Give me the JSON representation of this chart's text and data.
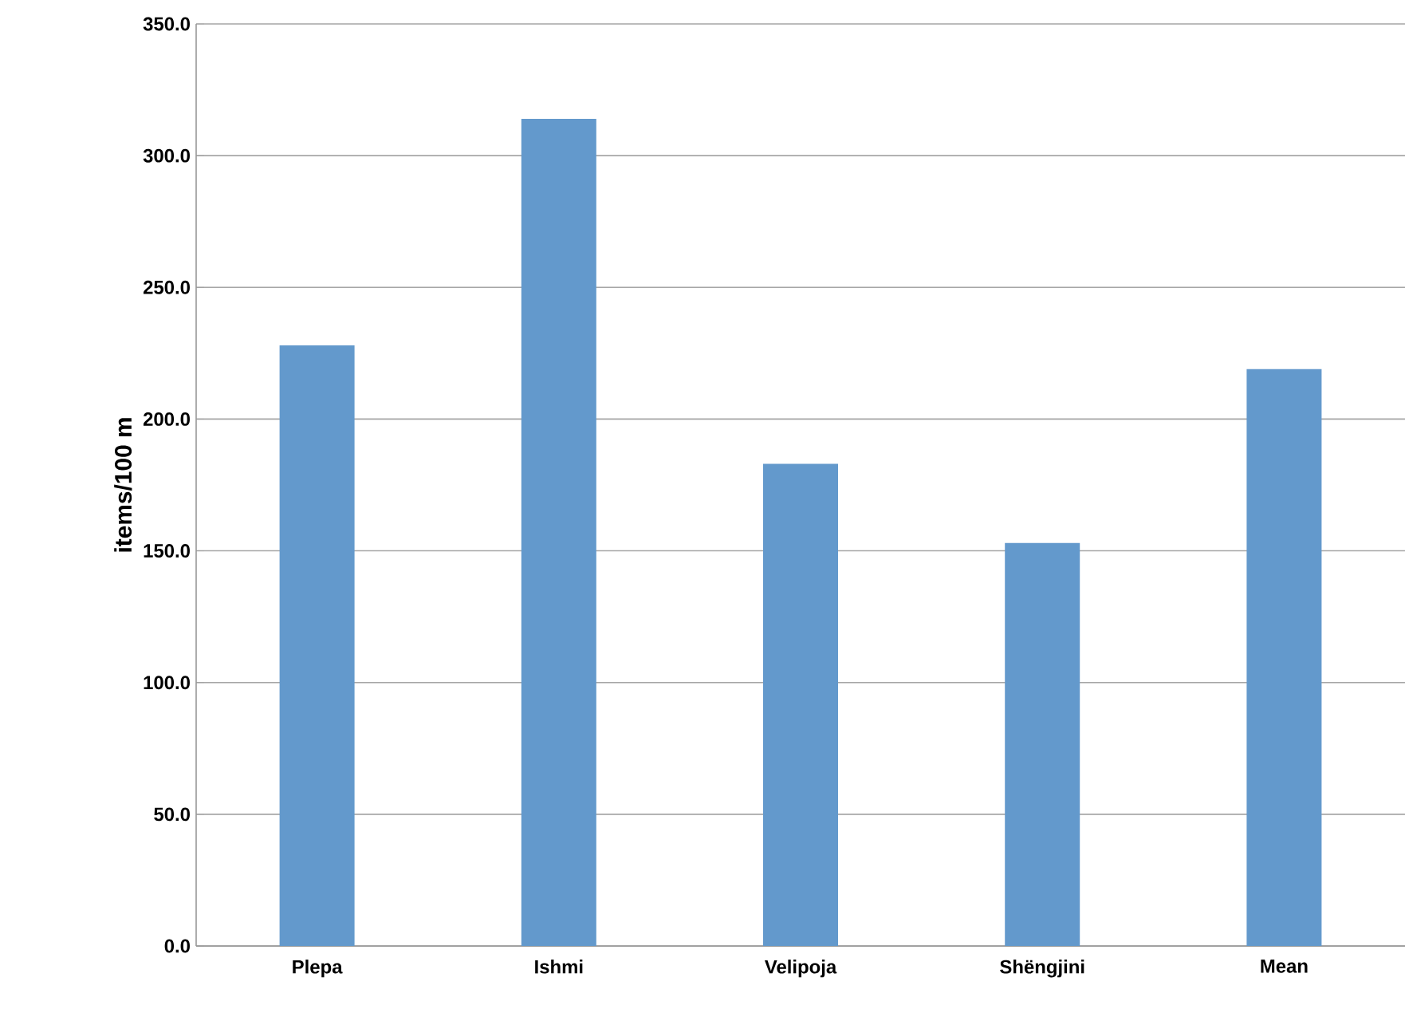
{
  "chart_data": {
    "type": "bar",
    "ylabel": "items/100 m",
    "categories": [
      "Plepa",
      "Ishmi",
      "Velipoja",
      "Shëngjini",
      "Mean"
    ],
    "values": [
      228,
      314,
      183,
      153,
      219
    ],
    "color": "#6399cc",
    "ylim": [
      0,
      350
    ],
    "yticks": [
      {
        "value": 0,
        "label": "0.0"
      },
      {
        "value": 50,
        "label": "50.0"
      },
      {
        "value": 100,
        "label": "100.0"
      },
      {
        "value": 150,
        "label": "150.0"
      },
      {
        "value": 200,
        "label": "200.0"
      },
      {
        "value": 250,
        "label": "250.0"
      },
      {
        "value": 300,
        "label": "300.0"
      },
      {
        "value": 350,
        "label": "350.0"
      }
    ],
    "grid": "y"
  }
}
